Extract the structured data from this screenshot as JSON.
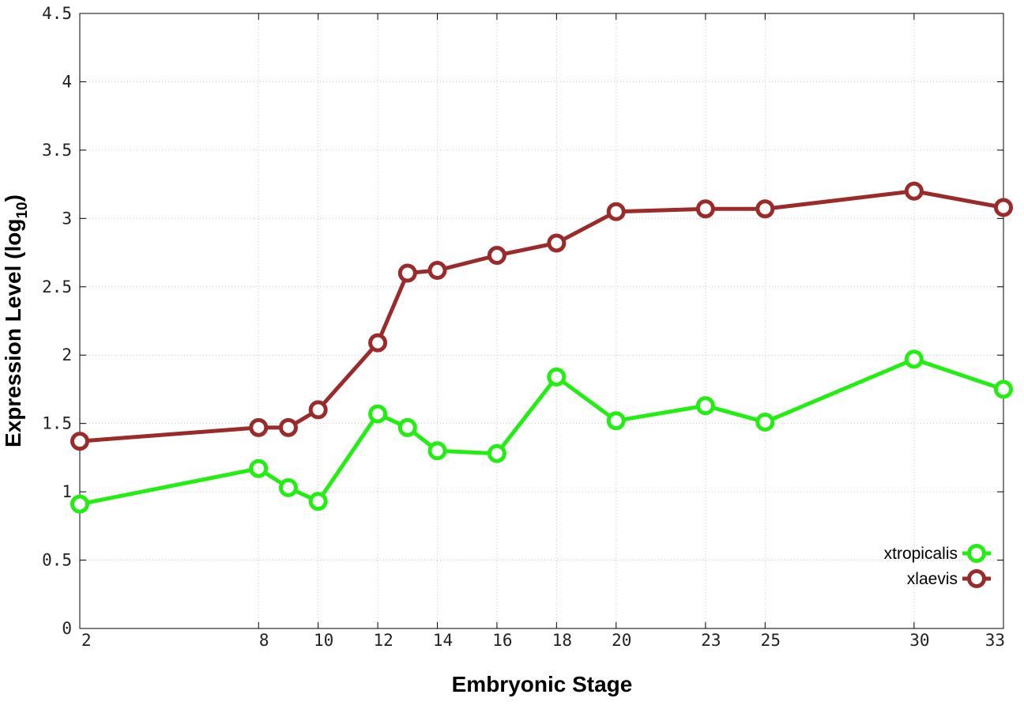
{
  "chart_data": {
    "type": "line",
    "xlabel": "Embryonic Stage",
    "ylabel_main": "Expression Level (log",
    "ylabel_sub": "10",
    "ylabel_end": ")",
    "ylim": [
      0,
      4.5
    ],
    "yticks": [
      0,
      0.5,
      1,
      1.5,
      2,
      2.5,
      3,
      3.5,
      4,
      4.5
    ],
    "ytick_labels": [
      "0",
      "0.5",
      "1",
      "1.5",
      "2",
      "2.5",
      "3",
      "3.5",
      "4",
      "4.5"
    ],
    "x_positions": [
      2,
      8,
      9,
      10,
      12,
      13,
      14,
      16,
      18,
      20,
      23,
      25,
      30,
      33
    ],
    "xticks": [
      2,
      8,
      10,
      12,
      14,
      16,
      18,
      20,
      23,
      25,
      30,
      33
    ],
    "xtick_labels": [
      "2",
      "8",
      "10",
      "12",
      "14",
      "16",
      "18",
      "20",
      "23",
      "25",
      "30",
      "33"
    ],
    "grid": true,
    "legend_position": "bottom-right",
    "series": [
      {
        "name": "xtropicalis",
        "color": "#22ee11",
        "x": [
          2,
          8,
          9,
          10,
          12,
          13,
          14,
          16,
          18,
          20,
          23,
          25,
          30,
          33
        ],
        "values": [
          0.91,
          1.17,
          1.03,
          0.93,
          1.57,
          1.47,
          1.3,
          1.28,
          1.84,
          1.52,
          1.63,
          1.51,
          1.97,
          1.75
        ]
      },
      {
        "name": "xlaevis",
        "color": "#9b2a2a",
        "x": [
          2,
          8,
          9,
          10,
          12,
          13,
          14,
          16,
          18,
          20,
          23,
          25,
          30,
          33
        ],
        "values": [
          1.37,
          1.47,
          1.47,
          1.6,
          2.09,
          2.6,
          2.62,
          2.73,
          2.82,
          3.05,
          3.07,
          3.07,
          3.2,
          3.08
        ]
      }
    ]
  }
}
